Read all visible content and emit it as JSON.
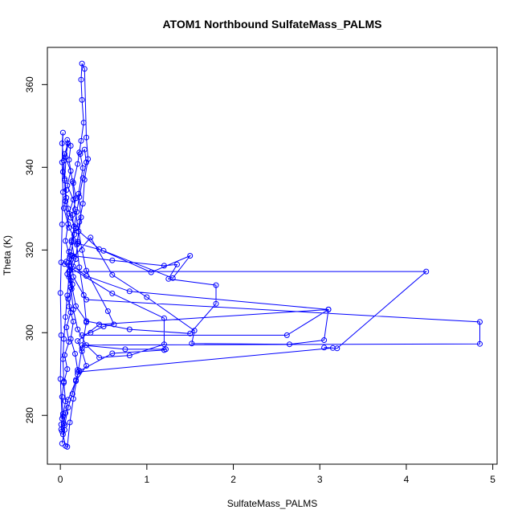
{
  "chart_data": {
    "type": "line",
    "title": "ATOM1 Northbound SulfateMass_PALMS",
    "xlabel": "SulfateMass_PALMS",
    "ylabel": "Theta (K)",
    "xlim": [
      -0.15,
      5.05
    ],
    "ylim": [
      268.2,
      369.0
    ],
    "xticks": [
      0,
      1,
      2,
      3,
      4,
      5
    ],
    "yticks": [
      280,
      300,
      320,
      340,
      360
    ],
    "grid": false,
    "marker": "open-circle",
    "color": "#0000ff",
    "series": [
      {
        "points": [
          [
            0.02,
            273.2
          ],
          [
            0.05,
            276.5
          ],
          [
            0.03,
            279.8
          ],
          [
            0.06,
            283.4
          ],
          [
            0.04,
            287.9
          ],
          [
            0.08,
            291.2
          ],
          [
            0.05,
            294.6
          ],
          [
            0.1,
            297.8
          ],
          [
            0.07,
            301.3
          ],
          [
            0.12,
            304.9
          ],
          [
            0.09,
            308.2
          ],
          [
            0.14,
            311.7
          ],
          [
            0.11,
            315.1
          ],
          [
            0.16,
            318.4
          ],
          [
            0.13,
            321.9
          ],
          [
            0.18,
            325.3
          ],
          [
            0.1,
            328.8
          ],
          [
            0.15,
            332.2
          ],
          [
            0.08,
            335.6
          ],
          [
            0.12,
            339.1
          ],
          [
            0.06,
            342.4
          ],
          [
            0.09,
            345.8
          ],
          [
            0.05,
            343.2
          ],
          [
            0.03,
            338.9
          ],
          [
            0.07,
            334.5
          ],
          [
            0.04,
            330.1
          ],
          [
            0.09,
            326.3
          ],
          [
            0.06,
            322.2
          ],
          [
            0.11,
            318.5
          ],
          [
            0.08,
            314.2
          ],
          [
            0.13,
            310.6
          ],
          [
            0.1,
            306.3
          ],
          [
            0.15,
            302.7
          ],
          [
            0.12,
            298.5
          ],
          [
            0.17,
            294.9
          ],
          [
            0.2,
            291.0
          ],
          [
            0.22,
            290.8
          ],
          [
            0.18,
            288.6
          ],
          [
            0.14,
            285.2
          ],
          [
            0.09,
            281.9
          ],
          [
            0.05,
            277.6
          ],
          [
            0.03,
            275.4
          ],
          [
            0.06,
            272.6
          ],
          [
            0.08,
            272.4
          ],
          [
            0.11,
            278.3
          ],
          [
            0.15,
            284.0
          ],
          [
            0.2,
            289.9
          ],
          [
            0.25,
            296.2
          ],
          [
            0.3,
            302.5
          ],
          [
            0.27,
            309.1
          ],
          [
            0.22,
            315.8
          ],
          [
            0.19,
            321.3
          ],
          [
            0.24,
            327.9
          ],
          [
            0.21,
            333.6
          ],
          [
            0.26,
            339.8
          ],
          [
            0.23,
            343.2
          ],
          [
            0.28,
            344.3
          ],
          [
            0.3,
            341.2
          ],
          [
            0.26,
            337.4
          ],
          [
            0.22,
            332.8
          ],
          [
            0.19,
            329.2
          ],
          [
            0.16,
            325.7
          ],
          [
            0.13,
            322.3
          ],
          [
            0.1,
            319.6
          ],
          [
            0.07,
            317.2
          ],
          [
            0.05,
            316.6
          ],
          [
            0.6,
            309.5
          ],
          [
            1.2,
            303.5
          ],
          [
            1.2,
            297.2
          ],
          [
            0.8,
            294.5
          ],
          [
            0.45,
            294.0
          ],
          [
            0.3,
            297.0
          ],
          [
            0.2,
            300.8
          ],
          [
            0.15,
            305.6
          ],
          [
            0.12,
            311.0
          ],
          [
            0.1,
            316.2
          ],
          [
            0.14,
            318.6
          ],
          [
            0.6,
            317.5
          ],
          [
            1.2,
            316.2
          ],
          [
            1.35,
            316.5
          ],
          [
            1.25,
            313.0
          ],
          [
            1.8,
            311.5
          ],
          [
            1.8,
            307.0
          ],
          [
            1.5,
            299.8
          ],
          [
            0.8,
            300.8
          ],
          [
            0.3,
            302.8
          ],
          [
            0.18,
            306.4
          ],
          [
            0.12,
            312.6
          ],
          [
            0.1,
            317.0
          ],
          [
            0.35,
            323.0
          ],
          [
            0.6,
            314.0
          ],
          [
            1.0,
            308.6
          ],
          [
            1.55,
            300.5
          ],
          [
            1.52,
            297.4
          ],
          [
            2.65,
            297.2
          ],
          [
            3.05,
            298.2
          ],
          [
            3.1,
            305.6
          ],
          [
            0.8,
            310.0
          ],
          [
            0.3,
            313.7
          ],
          [
            0.15,
            316.0
          ],
          [
            0.1,
            314.8
          ],
          [
            4.23,
            314.8
          ],
          [
            3.2,
            296.2
          ],
          [
            3.05,
            296.4
          ],
          [
            3.15,
            296.3
          ],
          [
            0.2,
            290.5
          ],
          [
            0.6,
            295.0
          ],
          [
            1.2,
            295.8
          ],
          [
            1.22,
            296.0
          ],
          [
            0.75,
            296.0
          ],
          [
            0.25,
            297.0
          ],
          [
            4.85,
            297.3
          ],
          [
            4.85,
            302.6
          ],
          [
            0.3,
            308.0
          ],
          [
            0.15,
            313.5
          ],
          [
            0.12,
            318.8
          ],
          [
            0.16,
            323.7
          ],
          [
            0.14,
            328.5
          ],
          [
            0.18,
            332.5
          ],
          [
            0.15,
            336.2
          ],
          [
            0.2,
            340.8
          ],
          [
            0.22,
            343.6
          ],
          [
            0.24,
            346.4
          ],
          [
            0.27,
            350.8
          ],
          [
            0.25,
            356.3
          ],
          [
            0.24,
            361.2
          ],
          [
            0.25,
            365.1
          ],
          [
            0.28,
            363.8
          ],
          [
            0.3,
            347.2
          ],
          [
            0.32,
            342.0
          ],
          [
            0.28,
            337.0
          ],
          [
            0.26,
            331.2
          ],
          [
            0.22,
            326.8
          ],
          [
            0.2,
            322.0
          ],
          [
            0.18,
            317.8
          ],
          [
            0.1,
            313.5
          ],
          [
            0.08,
            309.0
          ],
          [
            0.06,
            303.8
          ],
          [
            0.04,
            298.5
          ],
          [
            0.03,
            293.6
          ],
          [
            0.04,
            288.2
          ],
          [
            0.02,
            284.5
          ],
          [
            0.03,
            280.4
          ],
          [
            0.01,
            277.8
          ],
          [
            0.02,
            276.1
          ],
          [
            0.01,
            276.6
          ],
          [
            0.02,
            279.2
          ],
          [
            0.0,
            288.8
          ],
          [
            0.01,
            299.4
          ],
          [
            0.0,
            309.6
          ],
          [
            0.01,
            317.0
          ],
          [
            0.02,
            326.2
          ],
          [
            0.03,
            334.0
          ],
          [
            0.02,
            341.2
          ],
          [
            0.03,
            348.4
          ],
          [
            0.02,
            345.8
          ],
          [
            0.04,
            341.6
          ],
          [
            0.05,
            336.8
          ],
          [
            0.07,
            332.6
          ],
          [
            0.09,
            330.0
          ],
          [
            0.12,
            327.8
          ],
          [
            0.18,
            325.2
          ],
          [
            0.45,
            320.2
          ],
          [
            1.05,
            314.6
          ],
          [
            1.5,
            318.6
          ],
          [
            1.3,
            313.2
          ],
          [
            0.5,
            319.8
          ],
          [
            0.2,
            321.6
          ],
          [
            0.1,
            325.4
          ],
          [
            0.06,
            331.8
          ],
          [
            0.05,
            337.2
          ],
          [
            0.08,
            346.6
          ],
          [
            0.12,
            345.2
          ],
          [
            0.1,
            341.8
          ],
          [
            0.14,
            336.6
          ],
          [
            0.17,
            329.8
          ],
          [
            0.21,
            324.5
          ],
          [
            0.25,
            320.0
          ],
          [
            0.3,
            315.0
          ],
          [
            0.55,
            305.2
          ],
          [
            0.62,
            302.0
          ],
          [
            0.5,
            301.5
          ],
          [
            0.35,
            300.0
          ],
          [
            0.25,
            299.4
          ],
          [
            2.62,
            299.4
          ],
          [
            3.1,
            305.6
          ],
          [
            0.45,
            302.0
          ],
          [
            0.2,
            298.0
          ],
          [
            0.25,
            295.5
          ],
          [
            0.3,
            292.0
          ],
          [
            0.18,
            288.3
          ],
          [
            0.09,
            283.8
          ],
          [
            0.06,
            280.6
          ],
          [
            0.04,
            278.0
          ]
        ]
      }
    ]
  }
}
